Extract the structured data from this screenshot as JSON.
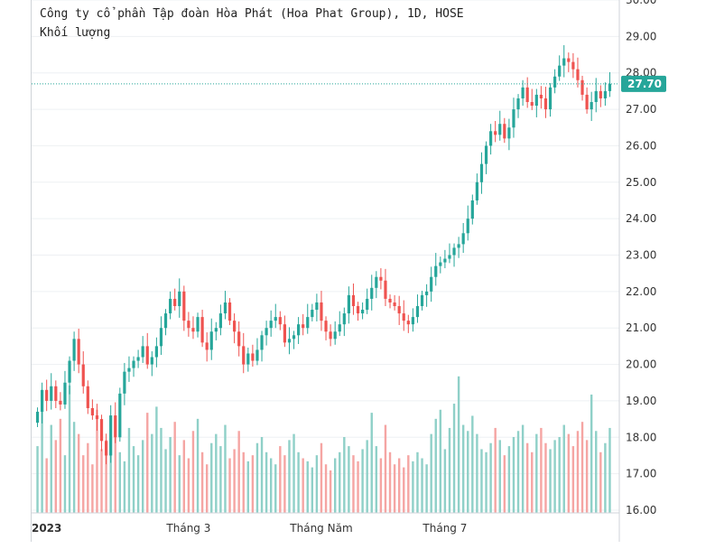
{
  "header": {
    "title": "Công ty cổ phần Tập đoàn Hòa Phát (Hoa Phat Group), 1D, HOSE",
    "subtitle": "Khối lượng"
  },
  "colors": {
    "up": "#26a69a",
    "down": "#ef5350",
    "vol_up": "#8fd0c8",
    "vol_down": "#f5a5a3",
    "grid": "#eef0f3",
    "price_line": "#26a69a"
  },
  "last_price": "27.70",
  "chart_data": {
    "type": "candlestick",
    "title": "Công ty cổ phần Tập đoàn Hòa Phát (Hoa Phat Group), 1D, HOSE",
    "y_axis": {
      "range": [
        16.0,
        30.0
      ],
      "ticks": [
        "16.00",
        "17.00",
        "18.00",
        "19.00",
        "20.00",
        "21.00",
        "22.00",
        "23.00",
        "24.00",
        "25.00",
        "26.00",
        "27.00",
        "28.00",
        "29.00",
        "30.00"
      ]
    },
    "x_axis": {
      "labels": [
        "2023",
        "Tháng 3",
        "Tháng Năm",
        "Tháng 7"
      ],
      "label_positions": [
        2,
        33,
        62,
        89
      ]
    },
    "last_price": 27.7,
    "closes": [
      18.7,
      19.3,
      19.0,
      19.4,
      19.0,
      18.9,
      19.5,
      20.1,
      20.7,
      20.0,
      19.4,
      18.8,
      18.6,
      18.5,
      17.9,
      17.5,
      18.6,
      18.0,
      19.2,
      19.8,
      19.9,
      20.1,
      20.2,
      20.5,
      20.0,
      20.2,
      20.5,
      21.0,
      21.4,
      21.8,
      21.6,
      22.0,
      21.2,
      21.0,
      20.9,
      21.3,
      20.6,
      20.4,
      20.9,
      21.0,
      21.4,
      21.7,
      21.2,
      20.9,
      20.5,
      20.0,
      20.3,
      20.1,
      20.4,
      20.8,
      21.0,
      21.2,
      21.3,
      21.1,
      20.6,
      20.7,
      20.8,
      21.1,
      21.0,
      21.3,
      21.5,
      21.7,
      21.2,
      20.9,
      20.7,
      20.9,
      21.1,
      21.4,
      21.9,
      21.6,
      21.4,
      21.5,
      21.8,
      22.1,
      22.4,
      22.3,
      21.8,
      21.7,
      21.6,
      21.4,
      21.2,
      21.1,
      21.3,
      21.6,
      21.9,
      22.0,
      22.4,
      22.7,
      22.8,
      22.9,
      23.0,
      23.2,
      23.3,
      23.6,
      24.0,
      24.5,
      25.0,
      25.5,
      26.0,
      26.4,
      26.3,
      26.6,
      26.2,
      26.5,
      27.0,
      27.3,
      27.6,
      27.2,
      27.1,
      27.4,
      27.3,
      27.0,
      27.6,
      27.9,
      28.2,
      28.4,
      28.3,
      28.1,
      27.8,
      27.4,
      27.0,
      27.2,
      27.5,
      27.3,
      27.5,
      27.7
    ],
    "volume_values": [
      2.2,
      3.6,
      1.8,
      2.9,
      2.4,
      3.1,
      1.9,
      4.2,
      3.0,
      2.6,
      1.9,
      2.3,
      1.6,
      3.4,
      2.1,
      2.4,
      1.9,
      2.5,
      2.0,
      1.7,
      2.8,
      2.2,
      1.9,
      2.4,
      3.3,
      2.6,
      3.5,
      2.8,
      2.1,
      2.5,
      3.0,
      1.9,
      2.4,
      1.8,
      2.7,
      3.1,
      2.0,
      1.6,
      2.3,
      2.6,
      2.2,
      2.9,
      1.8,
      2.1,
      2.7,
      2.0,
      1.7,
      1.9,
      2.3,
      2.5,
      2.0,
      1.8,
      1.6,
      2.2,
      1.9,
      2.4,
      2.6,
      2.0,
      1.8,
      1.7,
      1.5,
      1.9,
      2.3,
      1.6,
      1.4,
      1.8,
      2.0,
      2.5,
      2.2,
      1.9,
      1.7,
      2.1,
      2.4,
      3.3,
      2.2,
      1.8,
      2.9,
      2.0,
      1.6,
      1.8,
      1.5,
      1.9,
      1.7,
      2.0,
      1.8,
      1.6,
      2.6,
      3.1,
      3.4,
      2.1,
      2.8,
      3.6,
      4.5,
      2.9,
      2.7,
      3.2,
      2.6,
      2.1,
      2.0,
      2.3,
      2.8,
      2.4,
      1.9,
      2.2,
      2.5,
      2.7,
      2.9,
      2.3,
      2.0,
      2.6,
      2.8,
      2.3,
      2.1,
      2.4,
      2.5,
      2.9,
      2.6,
      2.2,
      2.7,
      3.0,
      2.4,
      3.9,
      2.7,
      2.0,
      2.3,
      2.8
    ],
    "volume_axis_range": [
      0,
      5
    ]
  }
}
